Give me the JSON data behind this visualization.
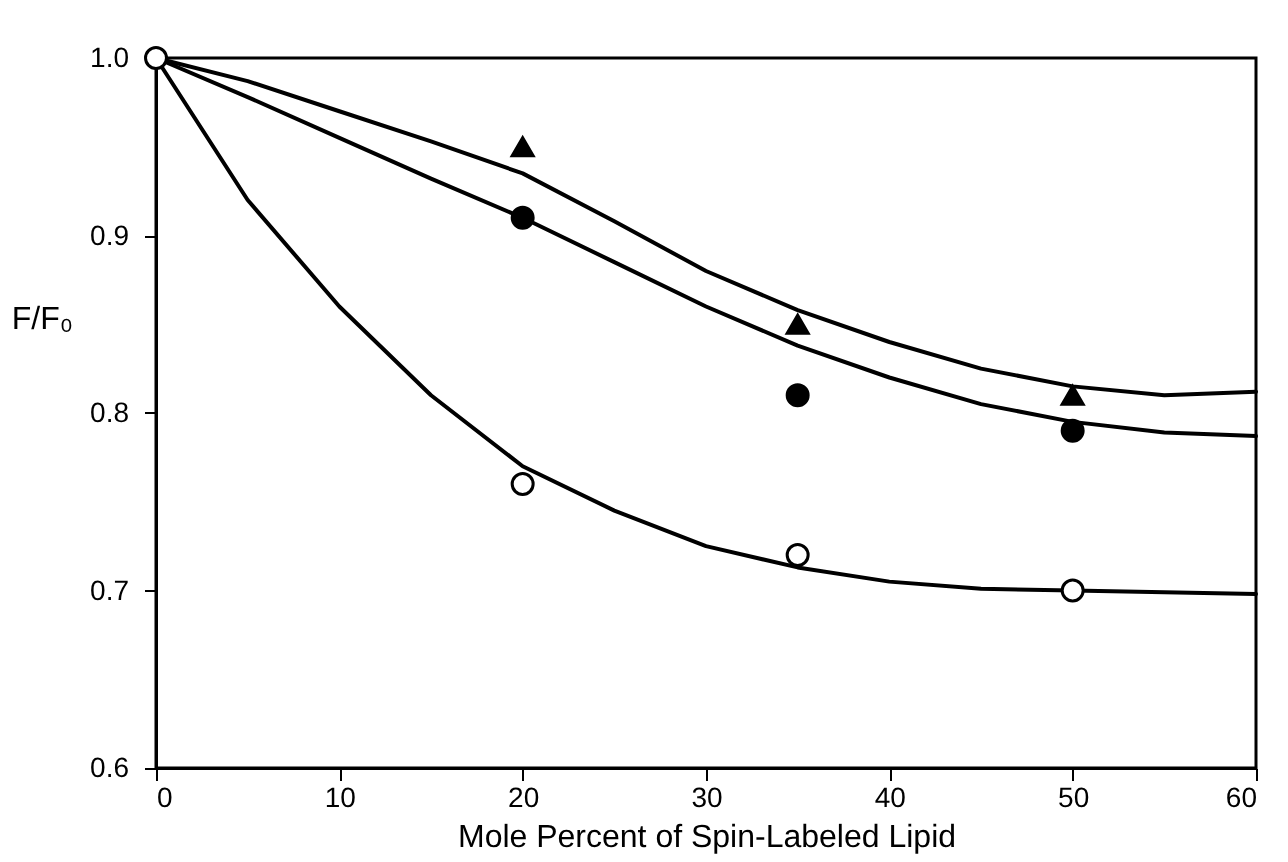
{
  "chart_data": {
    "type": "scatter",
    "xlabel": "Mole Percent of Spin-Labeled Lipid",
    "ylabel": "F/F₀",
    "xlim": [
      0,
      60
    ],
    "xticks": [
      0,
      10,
      20,
      30,
      40,
      50,
      60
    ],
    "ylim": [
      0.6,
      1.0
    ],
    "yticks": [
      {
        "value": 0.6,
        "label": "0.6"
      },
      {
        "value": 0.7,
        "label": "0.7"
      },
      {
        "value": 0.8,
        "label": "0.8"
      },
      {
        "value": 0.9,
        "label": "0.9"
      },
      {
        "value": 1.0,
        "label": "1.0"
      }
    ],
    "grid": false,
    "series": [
      {
        "type": "line",
        "color": "#000000",
        "marker": "none",
        "line_style": "solid",
        "x": [
          0,
          5,
          10,
          15,
          20,
          25,
          30,
          35,
          40,
          45,
          50,
          55,
          60
        ],
        "values": [
          1.0,
          0.987,
          0.97,
          0.953,
          0.935,
          0.908,
          0.88,
          0.858,
          0.84,
          0.825,
          0.815,
          0.81,
          0.812
        ]
      },
      {
        "type": "line",
        "color": "#000000",
        "marker": "none",
        "line_style": "solid",
        "x": [
          0,
          5,
          10,
          15,
          20,
          25,
          30,
          35,
          40,
          45,
          50,
          55,
          60
        ],
        "values": [
          1.0,
          0.978,
          0.955,
          0.932,
          0.91,
          0.885,
          0.86,
          0.838,
          0.82,
          0.805,
          0.795,
          0.789,
          0.787
        ]
      },
      {
        "type": "line",
        "color": "#000000",
        "marker": "none",
        "line_style": "solid",
        "x": [
          0,
          5,
          10,
          15,
          20,
          25,
          30,
          35,
          40,
          45,
          50,
          55,
          60
        ],
        "values": [
          1.0,
          0.92,
          0.86,
          0.81,
          0.77,
          0.745,
          0.725,
          0.713,
          0.705,
          0.701,
          0.7,
          0.699,
          0.698
        ]
      },
      {
        "color": "#000000",
        "marker": "triangle",
        "x": [
          20,
          35,
          50
        ],
        "values": [
          0.95,
          0.85,
          0.81
        ]
      },
      {
        "color": "#000000",
        "marker": "circle",
        "x": [
          20,
          35,
          50
        ],
        "values": [
          0.91,
          0.81,
          0.79
        ]
      },
      {
        "color": "#ffffff",
        "marker": "circle",
        "x": [
          0,
          20,
          35,
          50
        ],
        "values": [
          1.0,
          0.76,
          0.72,
          0.7
        ]
      }
    ]
  }
}
